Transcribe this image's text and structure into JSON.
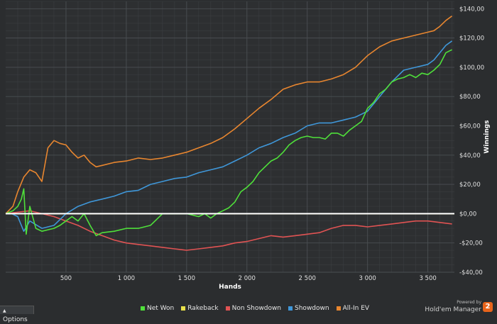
{
  "chart_data": {
    "type": "line",
    "xlabel": "Hands",
    "ylabel": "Winnings",
    "xlim": [
      0,
      3720
    ],
    "ylim": [
      -40,
      145
    ],
    "x_ticks": [
      500,
      1000,
      1500,
      2000,
      2500,
      3000,
      3500
    ],
    "x_tick_labels": [
      "500",
      "1 000",
      "1 500",
      "2 000",
      "2 500",
      "3 000",
      "3 500"
    ],
    "y_ticks": [
      -40,
      -20,
      0,
      20,
      40,
      60,
      80,
      100,
      120,
      140
    ],
    "y_tick_labels": [
      "-$40,00",
      "-$20,00",
      "$0,00",
      "$20,00",
      "$40,00",
      "$60,00",
      "$80,00",
      "$100,00",
      "$120,00",
      "$140,00"
    ],
    "grid": true,
    "legend_position": "bottom",
    "series": [
      {
        "name": "Net Won",
        "color": "#4fe03a",
        "x": [
          0,
          60,
          100,
          130,
          150,
          170,
          200,
          250,
          300,
          350,
          400,
          450,
          500,
          550,
          600,
          650,
          700,
          750,
          800,
          900,
          1000,
          1100,
          1200,
          1300,
          1400,
          1500,
          1600,
          1650,
          1700,
          1750,
          1800,
          1850,
          1900,
          1950,
          2000,
          2050,
          2100,
          2150,
          2200,
          2250,
          2300,
          2350,
          2400,
          2450,
          2500,
          2550,
          2600,
          2650,
          2700,
          2750,
          2800,
          2850,
          2900,
          2950,
          3000,
          3050,
          3100,
          3150,
          3200,
          3250,
          3300,
          3350,
          3400,
          3450,
          3500,
          3550,
          3600,
          3650,
          3700
        ],
        "y": [
          0,
          2,
          5,
          10,
          17,
          -14,
          5,
          -10,
          -12,
          -11,
          -10,
          -8,
          -5,
          -2,
          -5,
          0,
          -8,
          -15,
          -13,
          -12,
          -10,
          -10,
          -8,
          0,
          0,
          0,
          -2,
          0,
          -3,
          0,
          2,
          4,
          8,
          15,
          18,
          22,
          28,
          32,
          36,
          38,
          42,
          47,
          50,
          52,
          53,
          52,
          52,
          51,
          55,
          55,
          53,
          57,
          60,
          63,
          72,
          76,
          82,
          85,
          90,
          92,
          93,
          95,
          93,
          96,
          95,
          98,
          102,
          110,
          112
        ]
      },
      {
        "name": "Rakeback",
        "color": "#e8e04a",
        "x": [
          0,
          3720
        ],
        "y": [
          0,
          0
        ]
      },
      {
        "name": "Non Showdown",
        "color": "#e05353",
        "x": [
          0,
          100,
          200,
          300,
          400,
          500,
          600,
          700,
          800,
          900,
          1000,
          1100,
          1200,
          1300,
          1400,
          1500,
          1600,
          1700,
          1800,
          1900,
          2000,
          2100,
          2200,
          2300,
          2400,
          2500,
          2600,
          2700,
          2800,
          2900,
          3000,
          3100,
          3200,
          3300,
          3400,
          3500,
          3600,
          3700
        ],
        "y": [
          0,
          1,
          2,
          0,
          -2,
          -5,
          -8,
          -12,
          -15,
          -18,
          -20,
          -21,
          -22,
          -23,
          -24,
          -25,
          -24,
          -23,
          -22,
          -20,
          -19,
          -17,
          -15,
          -16,
          -15,
          -14,
          -13,
          -10,
          -8,
          -8,
          -9,
          -8,
          -7,
          -6,
          -5,
          -5,
          -6,
          -7
        ]
      },
      {
        "name": "Showdown",
        "color": "#3f97d9",
        "x": [
          0,
          50,
          100,
          150,
          200,
          300,
          400,
          500,
          600,
          700,
          800,
          900,
          1000,
          1100,
          1200,
          1300,
          1400,
          1500,
          1600,
          1700,
          1800,
          1900,
          2000,
          2100,
          2200,
          2300,
          2400,
          2500,
          2600,
          2700,
          2800,
          2900,
          3000,
          3100,
          3200,
          3300,
          3400,
          3500,
          3550,
          3600,
          3650,
          3700
        ],
        "y": [
          0,
          0,
          -2,
          -12,
          -5,
          -10,
          -8,
          0,
          5,
          8,
          10,
          12,
          15,
          16,
          20,
          22,
          24,
          25,
          28,
          30,
          32,
          36,
          40,
          45,
          48,
          52,
          55,
          60,
          62,
          62,
          64,
          66,
          70,
          80,
          90,
          98,
          100,
          102,
          105,
          110,
          115,
          118
        ]
      },
      {
        "name": "All-In EV",
        "color": "#e8862f",
        "x": [
          0,
          60,
          100,
          150,
          200,
          250,
          300,
          350,
          400,
          450,
          500,
          550,
          600,
          650,
          700,
          750,
          800,
          900,
          1000,
          1100,
          1200,
          1300,
          1400,
          1500,
          1600,
          1700,
          1800,
          1900,
          2000,
          2100,
          2200,
          2300,
          2400,
          2500,
          2600,
          2700,
          2800,
          2900,
          3000,
          3100,
          3200,
          3300,
          3400,
          3500,
          3550,
          3600,
          3650,
          3700
        ],
        "y": [
          0,
          5,
          15,
          25,
          30,
          28,
          22,
          45,
          50,
          48,
          47,
          42,
          38,
          40,
          35,
          32,
          33,
          35,
          36,
          38,
          37,
          38,
          40,
          42,
          45,
          48,
          52,
          58,
          65,
          72,
          78,
          85,
          88,
          90,
          90,
          92,
          95,
          100,
          108,
          114,
          118,
          120,
          122,
          124,
          125,
          128,
          132,
          135
        ]
      }
    ],
    "legend": [
      "Net Won",
      "Rakeback",
      "Non Showdown",
      "Showdown",
      "All-In EV"
    ]
  },
  "ui": {
    "options_label": "Options",
    "powered_by": "Powered by",
    "brand_name": "Hold'em Manager",
    "brand_badge": "2"
  }
}
